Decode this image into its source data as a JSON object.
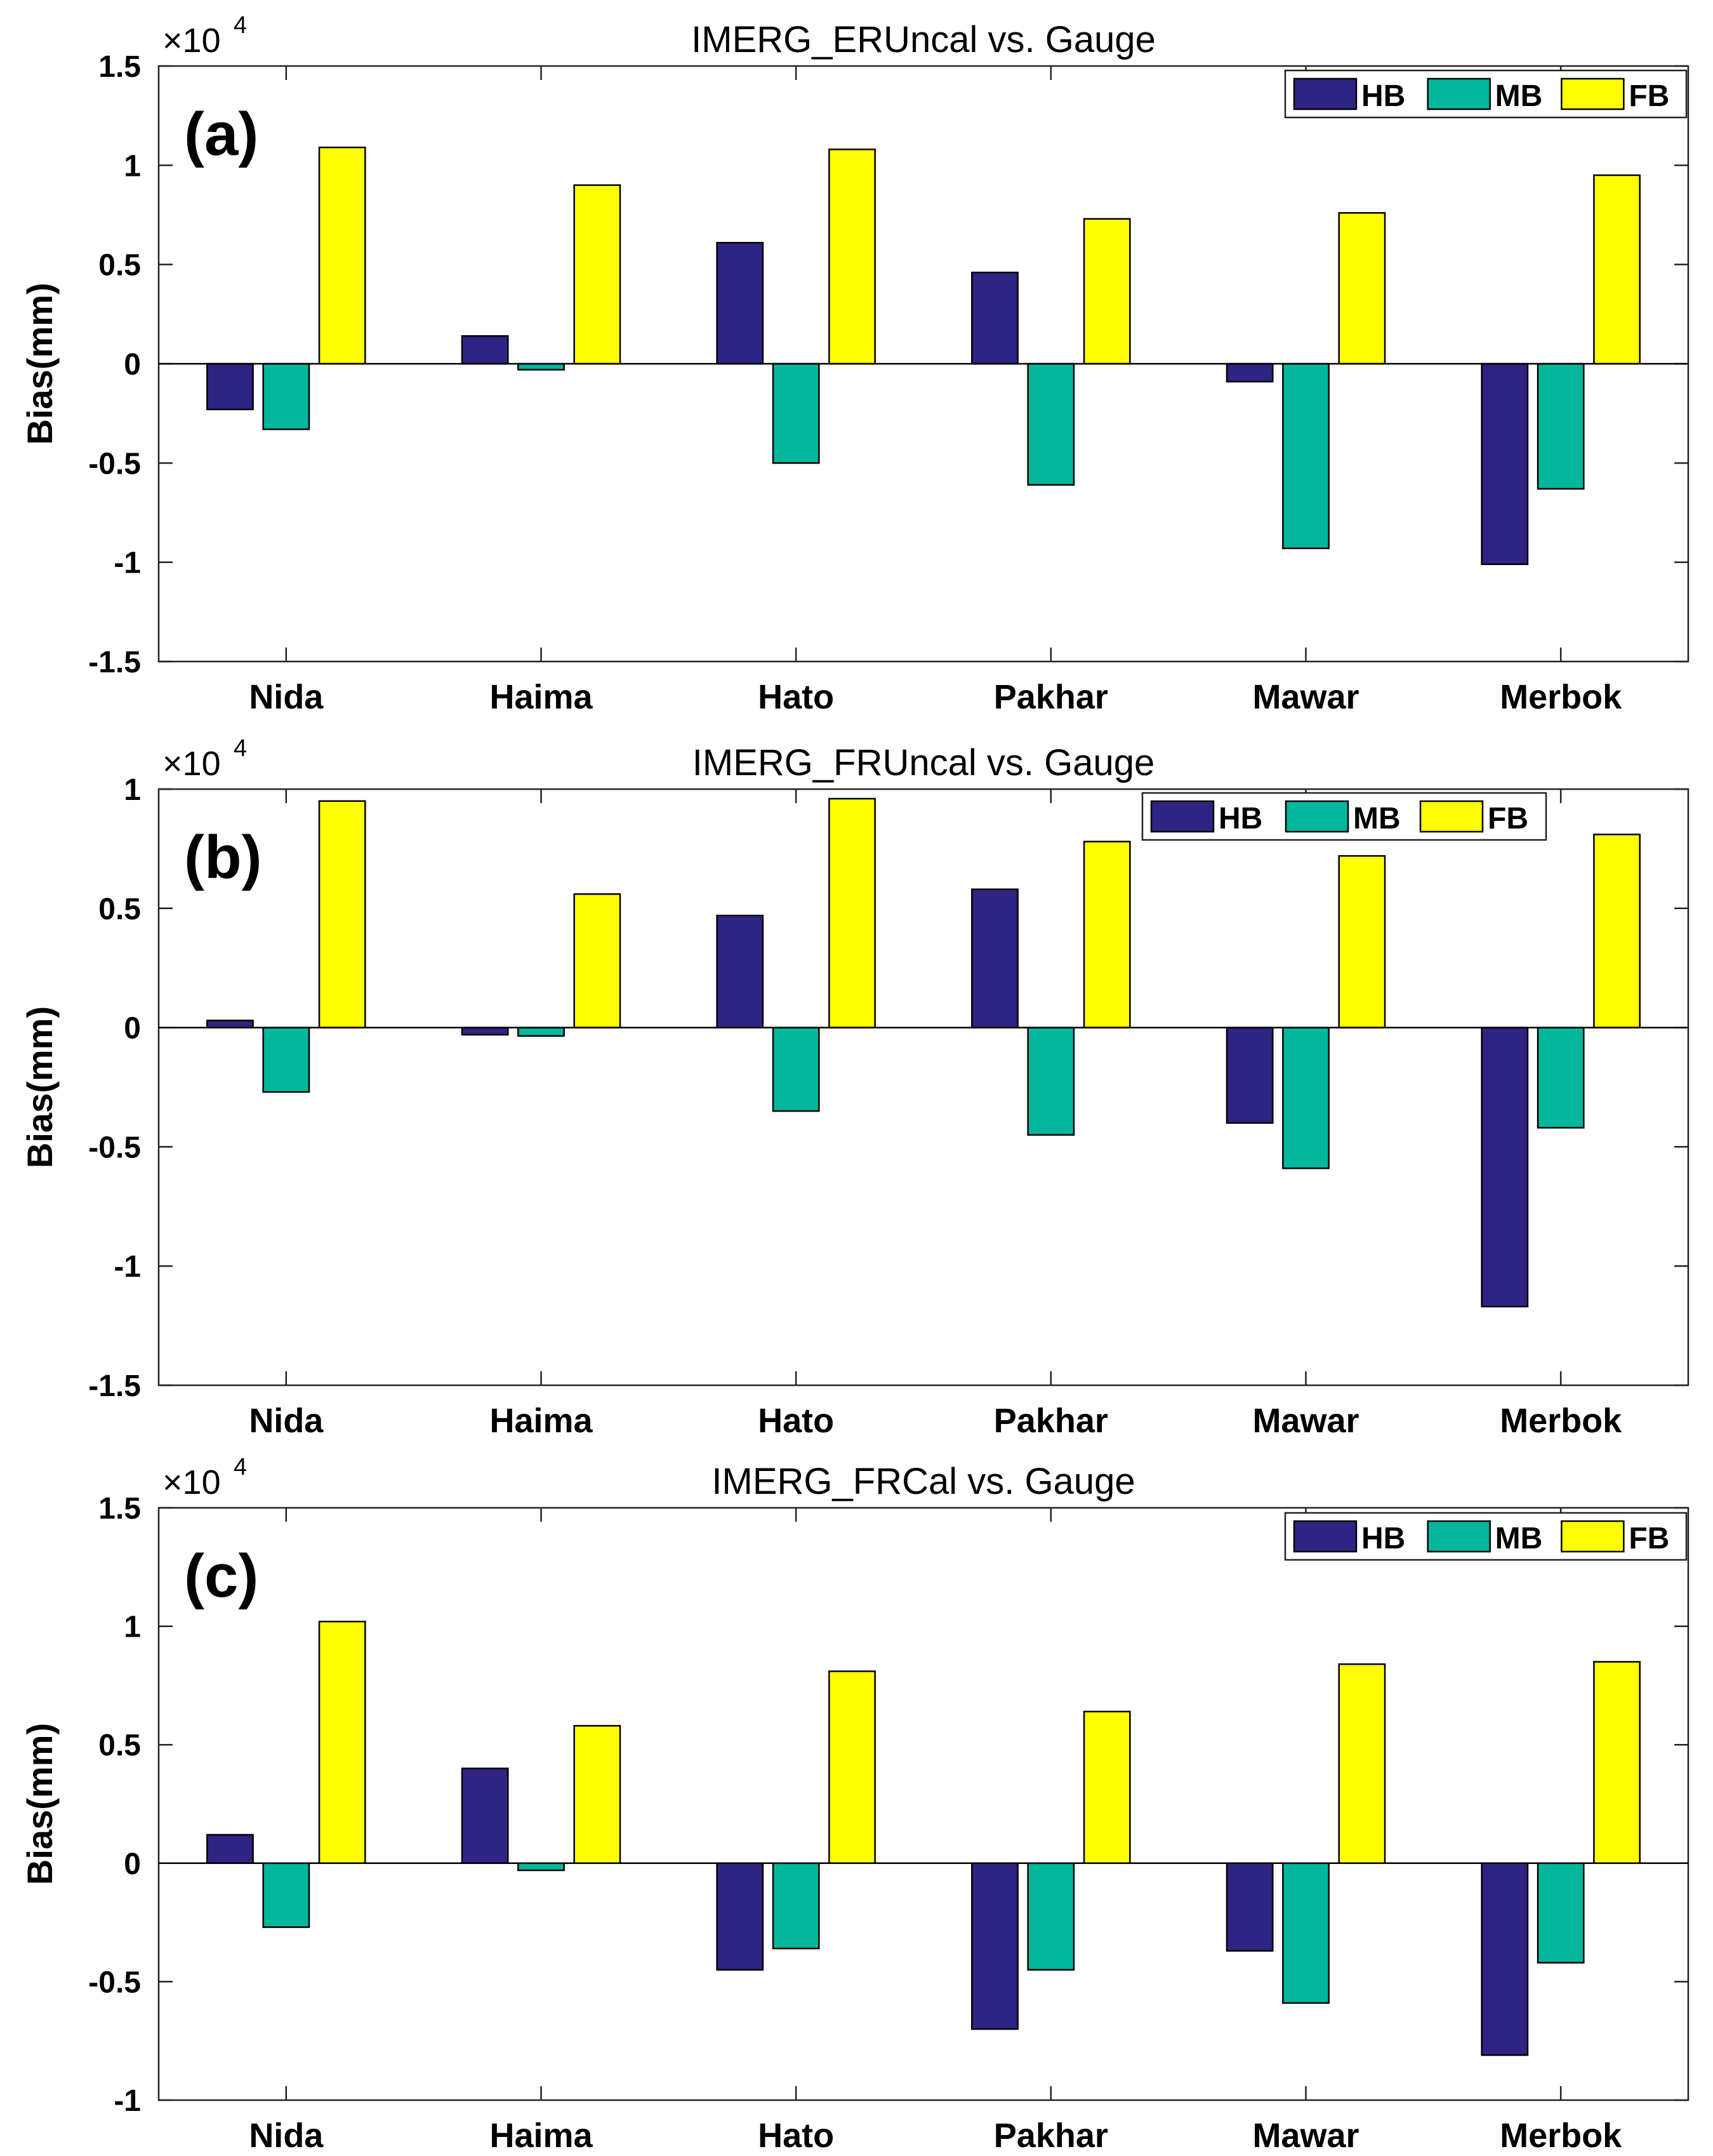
{
  "chart_data": [
    {
      "type": "bar",
      "title": "IMERG_ERUncal vs. Gauge",
      "panel_label": "(a)",
      "ylabel": "Bias(mm)",
      "xlabel": "",
      "scale_base": "×10",
      "scale_exponent": "4",
      "ylim": [
        -1.5,
        1.5
      ],
      "yticks": [
        -1.5,
        -1,
        -0.5,
        0,
        0.5,
        1,
        1.5
      ],
      "ytick_labels": [
        "-1.5",
        "-1",
        "-0.5",
        "0",
        "0.5",
        "1",
        "1.5"
      ],
      "categories": [
        "Nida",
        "Haima",
        "Hato",
        "Pakhar",
        "Mawar",
        "Merbok"
      ],
      "legend_position": "top-right",
      "series": [
        {
          "name": "HB",
          "color": "#2e2483",
          "values": [
            -0.23,
            0.14,
            0.61,
            0.46,
            -0.09,
            -1.01
          ]
        },
        {
          "name": "MB",
          "color": "#00b79b",
          "values": [
            -0.33,
            -0.03,
            -0.5,
            -0.61,
            -0.93,
            -0.63
          ]
        },
        {
          "name": "FB",
          "color": "#ffff00",
          "values": [
            1.09,
            0.9,
            1.08,
            0.73,
            0.76,
            0.95
          ]
        }
      ]
    },
    {
      "type": "bar",
      "title": "IMERG_FRUncal vs. Gauge",
      "panel_label": "(b)",
      "ylabel": "Bias(mm)",
      "xlabel": "",
      "scale_base": "×10",
      "scale_exponent": "4",
      "ylim": [
        -1.5,
        1
      ],
      "yticks": [
        -1.5,
        -1,
        -0.5,
        0,
        0.5,
        1
      ],
      "ytick_labels": [
        "-1.5",
        "-1",
        "-0.5",
        "0",
        "0.5",
        "1"
      ],
      "categories": [
        "Nida",
        "Haima",
        "Hato",
        "Pakhar",
        "Mawar",
        "Merbok"
      ],
      "legend_position": "top-right",
      "series": [
        {
          "name": "HB",
          "color": "#2e2483",
          "values": [
            0.03,
            -0.03,
            0.47,
            0.58,
            -0.4,
            -1.17
          ]
        },
        {
          "name": "MB",
          "color": "#00b79b",
          "values": [
            -0.27,
            -0.035,
            -0.35,
            -0.45,
            -0.59,
            -0.42
          ]
        },
        {
          "name": "FB",
          "color": "#ffff00",
          "values": [
            0.95,
            0.56,
            0.96,
            0.78,
            0.72,
            0.81
          ]
        }
      ]
    },
    {
      "type": "bar",
      "title": "IMERG_FRCal vs. Gauge",
      "panel_label": "(c)",
      "ylabel": "Bias(mm)",
      "xlabel": "",
      "scale_base": "×10",
      "scale_exponent": "4",
      "ylim": [
        -1,
        1.5
      ],
      "yticks": [
        -1,
        -0.5,
        0,
        0.5,
        1,
        1.5
      ],
      "ytick_labels": [
        "-1",
        "-0.5",
        "0",
        "0.5",
        "1",
        "1.5"
      ],
      "categories": [
        "Nida",
        "Haima",
        "Hato",
        "Pakhar",
        "Mawar",
        "Merbok"
      ],
      "legend_position": "top-right",
      "series": [
        {
          "name": "HB",
          "color": "#2e2483",
          "values": [
            0.12,
            0.4,
            -0.45,
            -0.7,
            -0.37,
            -0.81
          ]
        },
        {
          "name": "MB",
          "color": "#00b79b",
          "values": [
            -0.27,
            -0.03,
            -0.36,
            -0.45,
            -0.59,
            -0.42
          ]
        },
        {
          "name": "FB",
          "color": "#ffff00",
          "values": [
            1.02,
            0.58,
            0.81,
            0.64,
            0.84,
            0.85
          ]
        }
      ]
    }
  ]
}
